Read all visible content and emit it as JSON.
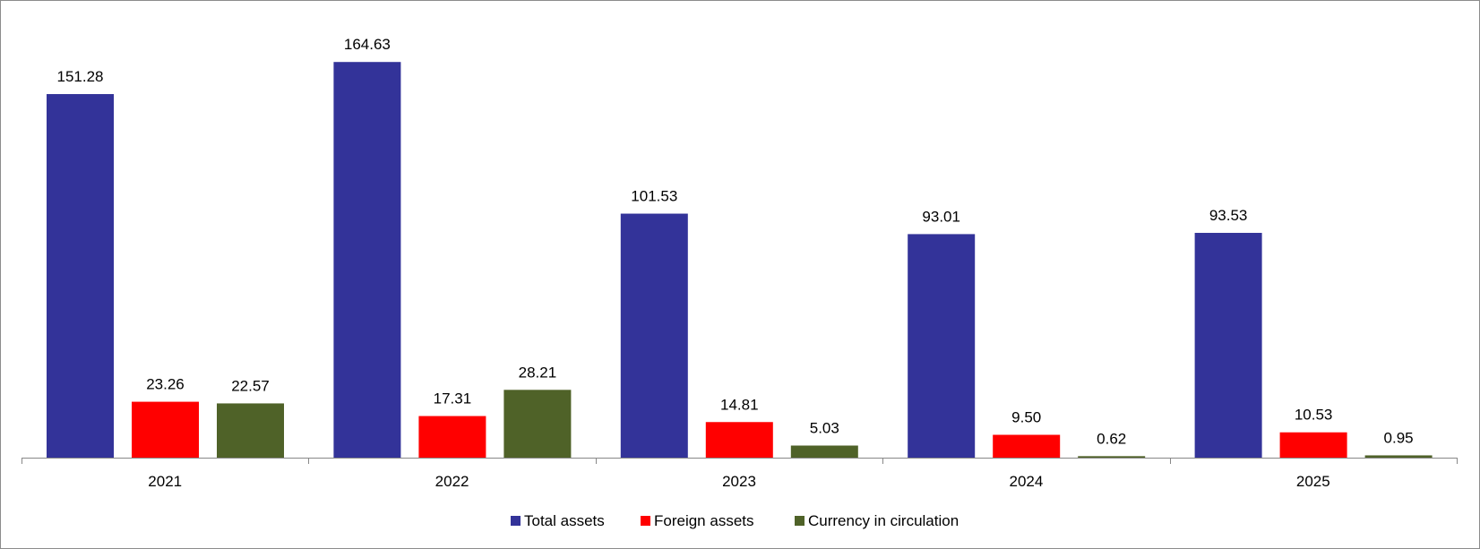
{
  "chart_data": {
    "type": "bar",
    "categories": [
      "2021",
      "2022",
      "2023",
      "2024",
      "2025"
    ],
    "series": [
      {
        "name": "Total assets",
        "color": "#333399",
        "values": [
          151.28,
          164.63,
          101.53,
          93.01,
          93.53
        ],
        "labels": [
          "151.28",
          "164.63",
          "101.53",
          "93.01",
          "93.53"
        ]
      },
      {
        "name": "Foreign assets",
        "color": "#ff0000",
        "values": [
          23.26,
          17.31,
          14.81,
          9.5,
          10.53
        ],
        "labels": [
          "23.26",
          "17.31",
          "14.81",
          "9.50",
          "10.53"
        ]
      },
      {
        "name": "Currency in circulation",
        "color": "#4f6228",
        "values": [
          22.57,
          28.21,
          5.03,
          0.62,
          0.95
        ],
        "labels": [
          "22.57",
          "28.21",
          "5.03",
          "0.62",
          "0.95"
        ]
      }
    ],
    "ylim": [
      0,
      175
    ],
    "grid": false,
    "legend_position": "bottom-center"
  }
}
